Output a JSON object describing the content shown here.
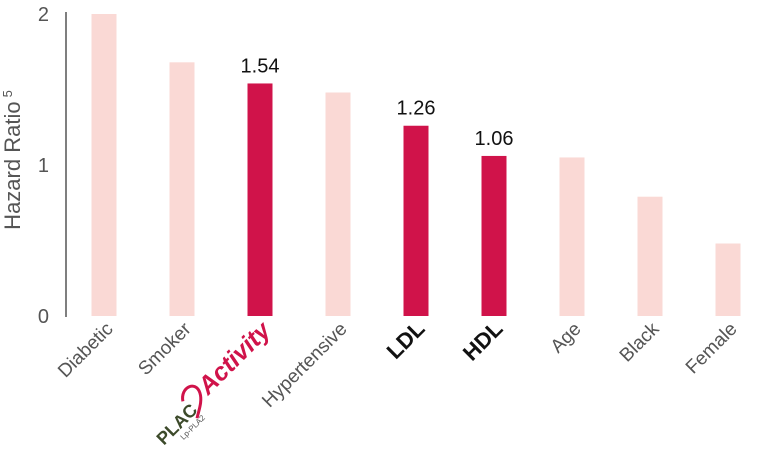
{
  "chart_data": {
    "type": "bar",
    "ylabel": "Hazard Ratio",
    "ylabel_superscript": "5",
    "ylim": [
      0,
      2
    ],
    "yticks": [
      "0",
      "1",
      "2"
    ],
    "categories": [
      "Diabetic",
      "Smoker",
      "PLAC Activity",
      "Hypertensive",
      "LDL",
      "HDL",
      "Age",
      "Black",
      "Female"
    ],
    "values": [
      2.0,
      1.68,
      1.54,
      1.48,
      1.26,
      1.06,
      1.05,
      0.79,
      0.48
    ],
    "highlighted": [
      false,
      false,
      true,
      false,
      true,
      true,
      false,
      false,
      false
    ],
    "data_labels": [
      "",
      "",
      "1.54",
      "",
      "1.26",
      "1.06",
      "",
      "",
      ""
    ],
    "colors": {
      "bar": "#fad9d5",
      "highlight": "#d0134a",
      "axis": "#555555"
    },
    "logo": {
      "text_main": "PLAC",
      "text_sub": "Lp-PLA2",
      "text_activity": "Activity"
    }
  }
}
